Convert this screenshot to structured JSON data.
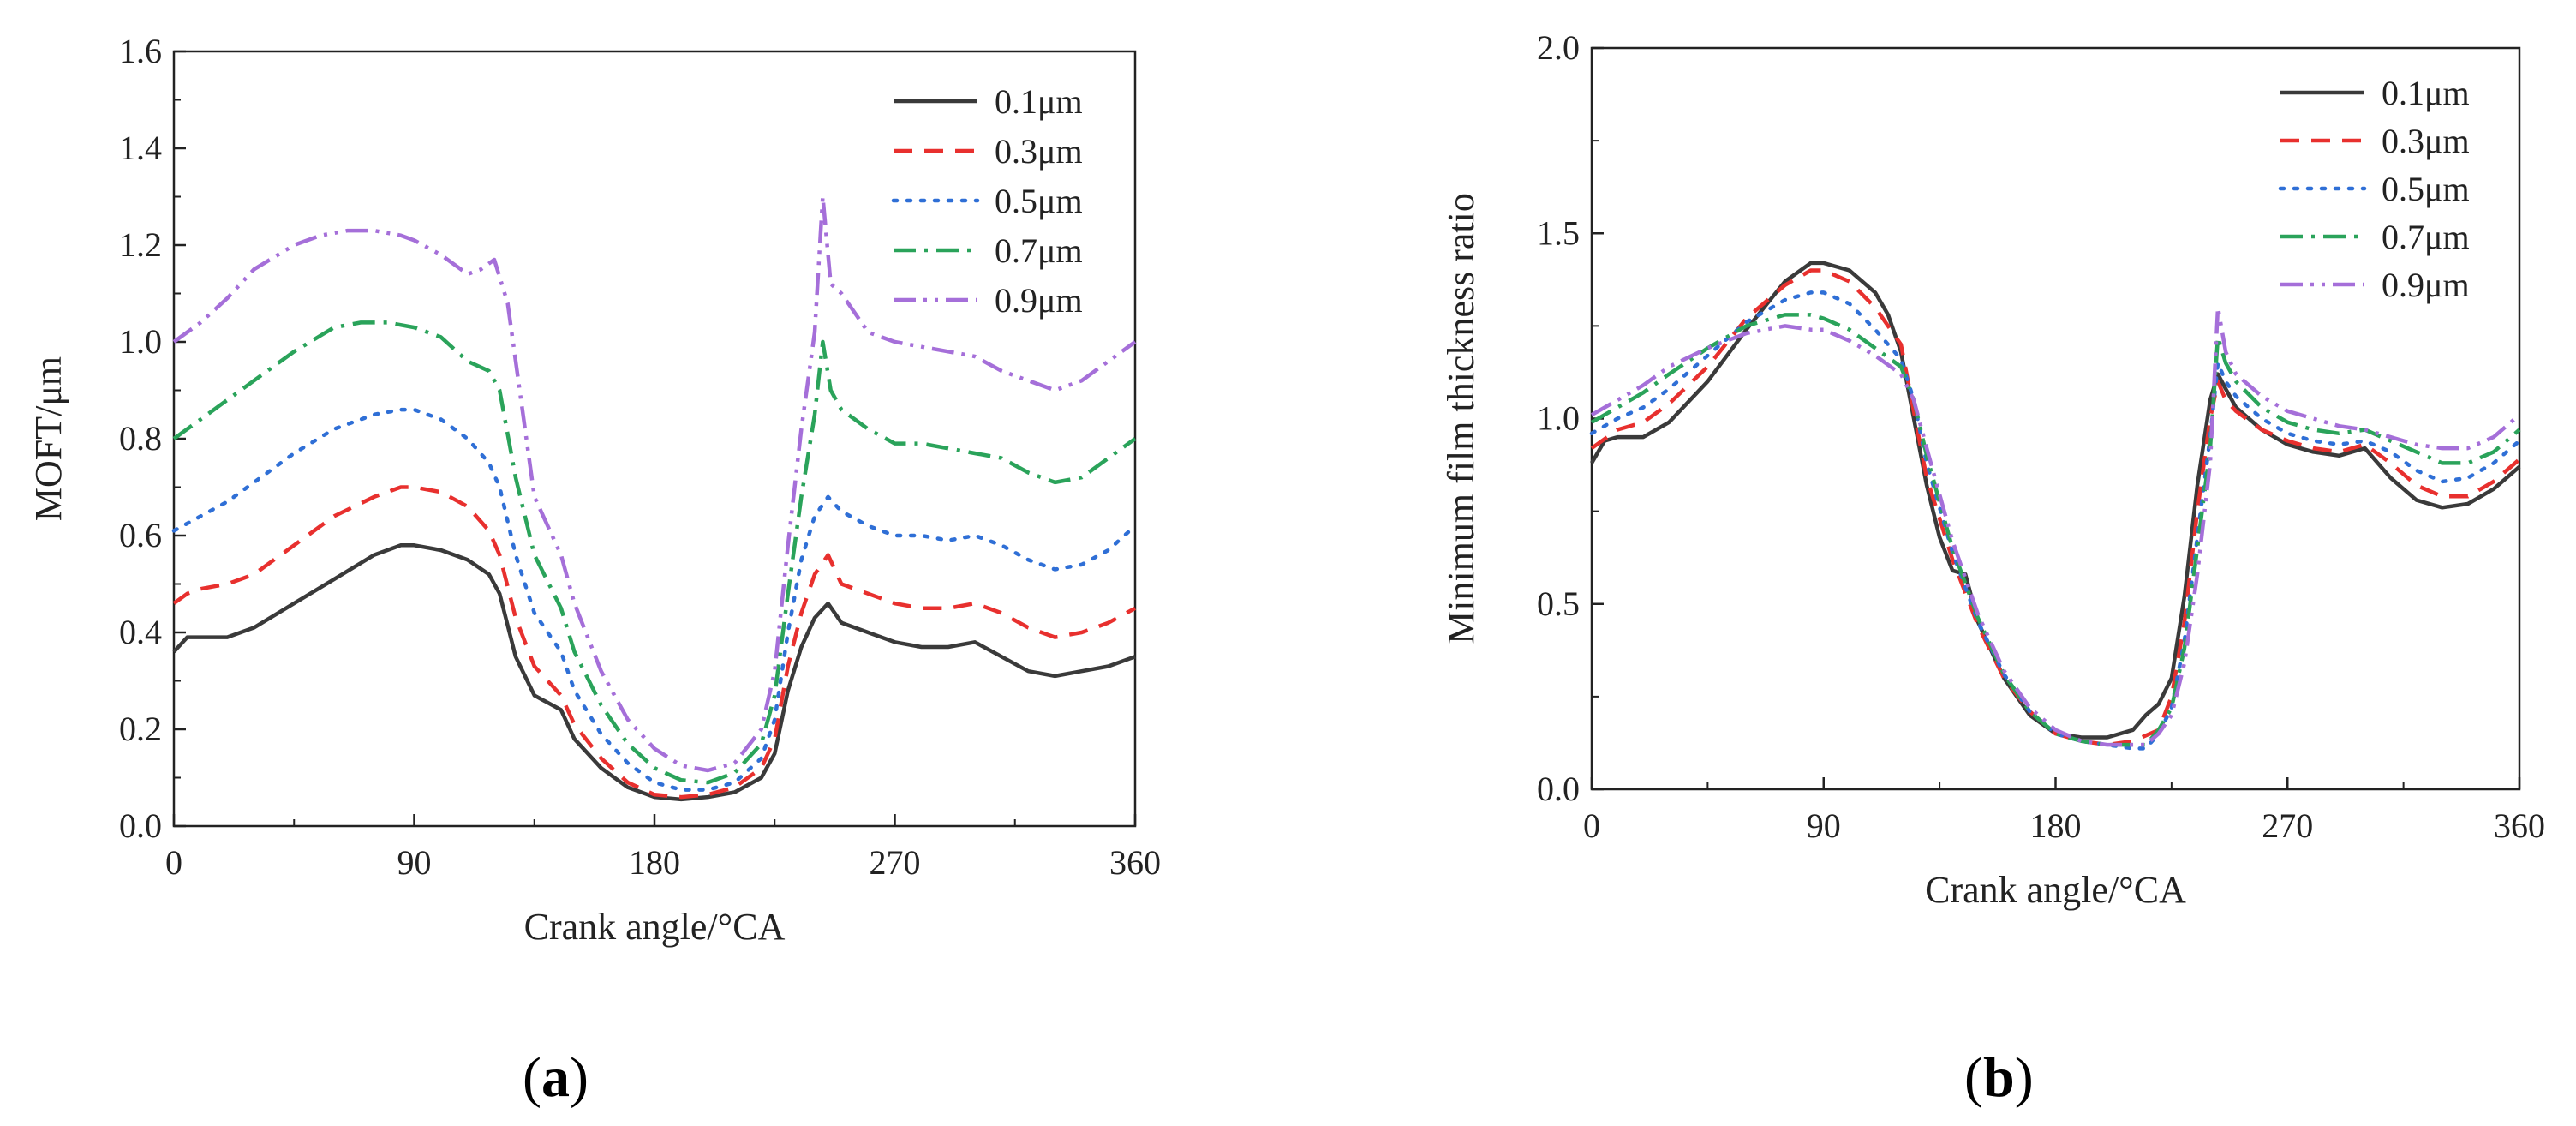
{
  "colors": {
    "0.1": "#3a3a3a",
    "0.3": "#e8302e",
    "0.5": "#2f6fd6",
    "0.7": "#2aa35a",
    "0.9": "#a56fd9"
  },
  "captions": {
    "a_open": "(",
    "a_letter": "a",
    "a_close": ")",
    "b_open": "(",
    "b_letter": "b",
    "b_close": ")"
  },
  "chart_data": [
    {
      "type": "line",
      "panel": "a",
      "xlabel": "Crank angle/°CA",
      "ylabel": "MOFT/μm",
      "xlim": [
        0,
        360
      ],
      "ylim": [
        0,
        1.6
      ],
      "xticks": [
        0,
        90,
        180,
        270,
        360
      ],
      "yticks": [
        0.0,
        0.2,
        0.4,
        0.6,
        0.8,
        1.0,
        1.2,
        1.4,
        1.6
      ],
      "ytick_labels": [
        "0.0",
        "0.2",
        "0.4",
        "0.6",
        "0.8",
        "1.0",
        "1.2",
        "1.4",
        "1.6"
      ],
      "legend_position": "top-right",
      "series": [
        {
          "name": "0.1μm",
          "style": "solid",
          "x": [
            0,
            5,
            10,
            20,
            30,
            45,
            60,
            75,
            85,
            90,
            100,
            110,
            118,
            122,
            128,
            135,
            145,
            150,
            160,
            170,
            180,
            190,
            200,
            210,
            220,
            225,
            230,
            235,
            240,
            245,
            250,
            260,
            270,
            280,
            290,
            300,
            310,
            320,
            330,
            340,
            350,
            360
          ],
          "y": [
            0.36,
            0.39,
            0.39,
            0.39,
            0.41,
            0.46,
            0.51,
            0.56,
            0.58,
            0.58,
            0.57,
            0.55,
            0.52,
            0.48,
            0.35,
            0.27,
            0.24,
            0.18,
            0.12,
            0.08,
            0.06,
            0.055,
            0.06,
            0.07,
            0.1,
            0.15,
            0.28,
            0.37,
            0.43,
            0.46,
            0.42,
            0.4,
            0.38,
            0.37,
            0.37,
            0.38,
            0.35,
            0.32,
            0.31,
            0.32,
            0.33,
            0.35
          ]
        },
        {
          "name": "0.3μm",
          "style": "dashed",
          "x": [
            0,
            5,
            10,
            20,
            30,
            45,
            60,
            75,
            85,
            90,
            100,
            110,
            118,
            122,
            128,
            135,
            145,
            150,
            160,
            170,
            180,
            190,
            200,
            210,
            220,
            225,
            230,
            235,
            240,
            245,
            250,
            260,
            270,
            280,
            290,
            300,
            310,
            320,
            330,
            340,
            350,
            360
          ],
          "y": [
            0.46,
            0.48,
            0.49,
            0.5,
            0.52,
            0.58,
            0.64,
            0.68,
            0.7,
            0.7,
            0.69,
            0.66,
            0.61,
            0.56,
            0.43,
            0.33,
            0.27,
            0.21,
            0.14,
            0.09,
            0.065,
            0.06,
            0.065,
            0.08,
            0.12,
            0.18,
            0.33,
            0.44,
            0.52,
            0.56,
            0.5,
            0.48,
            0.46,
            0.45,
            0.45,
            0.46,
            0.44,
            0.41,
            0.39,
            0.4,
            0.42,
            0.45
          ]
        },
        {
          "name": "0.5μm",
          "style": "dotted",
          "x": [
            0,
            10,
            20,
            30,
            45,
            60,
            75,
            85,
            90,
            100,
            110,
            118,
            122,
            128,
            135,
            145,
            150,
            160,
            170,
            180,
            190,
            200,
            210,
            220,
            225,
            230,
            235,
            240,
            245,
            250,
            260,
            270,
            280,
            290,
            300,
            310,
            320,
            330,
            340,
            350,
            360
          ],
          "y": [
            0.61,
            0.64,
            0.67,
            0.71,
            0.77,
            0.82,
            0.85,
            0.86,
            0.86,
            0.84,
            0.8,
            0.75,
            0.7,
            0.56,
            0.44,
            0.36,
            0.28,
            0.19,
            0.13,
            0.09,
            0.075,
            0.075,
            0.09,
            0.14,
            0.22,
            0.4,
            0.55,
            0.64,
            0.68,
            0.65,
            0.62,
            0.6,
            0.6,
            0.59,
            0.6,
            0.58,
            0.55,
            0.53,
            0.54,
            0.57,
            0.62
          ]
        },
        {
          "name": "0.7μm",
          "style": "dashdot",
          "x": [
            0,
            10,
            20,
            30,
            45,
            60,
            70,
            80,
            90,
            100,
            110,
            118,
            122,
            128,
            135,
            145,
            150,
            160,
            170,
            180,
            190,
            200,
            210,
            220,
            225,
            230,
            235,
            240,
            243,
            246,
            250,
            260,
            270,
            280,
            290,
            300,
            310,
            320,
            330,
            340,
            350,
            360
          ],
          "y": [
            0.8,
            0.84,
            0.88,
            0.92,
            0.98,
            1.03,
            1.04,
            1.04,
            1.03,
            1.01,
            0.96,
            0.94,
            0.9,
            0.72,
            0.56,
            0.45,
            0.36,
            0.25,
            0.17,
            0.12,
            0.095,
            0.09,
            0.11,
            0.17,
            0.27,
            0.48,
            0.68,
            0.85,
            1.0,
            0.9,
            0.86,
            0.82,
            0.79,
            0.79,
            0.78,
            0.77,
            0.76,
            0.73,
            0.71,
            0.72,
            0.76,
            0.8
          ]
        },
        {
          "name": "0.9μm",
          "style": "dashdotdot",
          "x": [
            0,
            10,
            20,
            30,
            45,
            55,
            65,
            75,
            85,
            90,
            100,
            110,
            115,
            120,
            125,
            130,
            135,
            145,
            150,
            160,
            170,
            180,
            190,
            200,
            210,
            220,
            225,
            230,
            235,
            240,
            243,
            246,
            250,
            260,
            270,
            280,
            290,
            300,
            310,
            320,
            330,
            340,
            350,
            360
          ],
          "y": [
            1.0,
            1.04,
            1.09,
            1.15,
            1.2,
            1.22,
            1.23,
            1.23,
            1.22,
            1.21,
            1.18,
            1.14,
            1.15,
            1.17,
            1.08,
            0.88,
            0.68,
            0.56,
            0.46,
            0.32,
            0.22,
            0.16,
            0.125,
            0.115,
            0.13,
            0.2,
            0.32,
            0.58,
            0.82,
            1.02,
            1.3,
            1.12,
            1.1,
            1.02,
            1.0,
            0.99,
            0.98,
            0.97,
            0.94,
            0.92,
            0.9,
            0.92,
            0.96,
            1.0
          ]
        }
      ]
    },
    {
      "type": "line",
      "panel": "b",
      "xlabel": "Crank angle/°CA",
      "ylabel": "Minimum film thickness ratio",
      "xlim": [
        0,
        360
      ],
      "ylim": [
        0,
        2.0
      ],
      "xticks": [
        0,
        90,
        180,
        270,
        360
      ],
      "yticks": [
        0.0,
        0.5,
        1.0,
        1.5,
        2.0
      ],
      "ytick_labels": [
        "0.0",
        "0.5",
        "1.0",
        "1.5",
        "2.0"
      ],
      "legend_position": "top-right",
      "series": [
        {
          "name": "0.1μm",
          "style": "solid",
          "x": [
            0,
            5,
            10,
            20,
            30,
            45,
            60,
            75,
            85,
            90,
            100,
            110,
            115,
            120,
            125,
            130,
            135,
            140,
            145,
            150,
            160,
            170,
            180,
            190,
            200,
            210,
            215,
            220,
            225,
            230,
            235,
            240,
            243,
            246,
            250,
            260,
            270,
            280,
            290,
            300,
            310,
            320,
            330,
            340,
            350,
            360
          ],
          "y": [
            0.88,
            0.94,
            0.95,
            0.95,
            0.99,
            1.1,
            1.24,
            1.37,
            1.42,
            1.42,
            1.4,
            1.34,
            1.28,
            1.18,
            1.0,
            0.82,
            0.68,
            0.59,
            0.58,
            0.45,
            0.3,
            0.2,
            0.15,
            0.14,
            0.14,
            0.16,
            0.2,
            0.23,
            0.3,
            0.52,
            0.82,
            1.05,
            1.12,
            1.08,
            1.03,
            0.97,
            0.93,
            0.91,
            0.9,
            0.92,
            0.84,
            0.78,
            0.76,
            0.77,
            0.81,
            0.87
          ]
        },
        {
          "name": "0.3μm",
          "style": "dashed",
          "x": [
            0,
            10,
            20,
            30,
            45,
            60,
            75,
            85,
            90,
            100,
            110,
            120,
            125,
            130,
            140,
            150,
            160,
            170,
            180,
            190,
            200,
            210,
            220,
            225,
            230,
            235,
            240,
            243,
            246,
            250,
            260,
            270,
            280,
            290,
            300,
            310,
            320,
            330,
            340,
            350,
            360
          ],
          "y": [
            0.92,
            0.97,
            0.99,
            1.04,
            1.14,
            1.27,
            1.36,
            1.4,
            1.4,
            1.37,
            1.3,
            1.2,
            1.02,
            0.84,
            0.62,
            0.44,
            0.3,
            0.21,
            0.15,
            0.13,
            0.12,
            0.13,
            0.16,
            0.25,
            0.45,
            0.75,
            1.0,
            1.1,
            1.05,
            1.02,
            0.97,
            0.94,
            0.92,
            0.91,
            0.93,
            0.88,
            0.82,
            0.79,
            0.79,
            0.83,
            0.89
          ]
        },
        {
          "name": "0.5μm",
          "style": "dotted",
          "x": [
            0,
            10,
            20,
            30,
            45,
            60,
            75,
            85,
            90,
            100,
            110,
            120,
            125,
            130,
            140,
            150,
            160,
            170,
            180,
            190,
            200,
            210,
            215,
            220,
            225,
            230,
            235,
            240,
            243,
            246,
            250,
            260,
            270,
            280,
            290,
            300,
            310,
            320,
            330,
            340,
            350,
            360
          ],
          "y": [
            0.96,
            1.0,
            1.03,
            1.08,
            1.17,
            1.26,
            1.32,
            1.34,
            1.34,
            1.31,
            1.24,
            1.16,
            1.05,
            0.88,
            0.64,
            0.45,
            0.31,
            0.21,
            0.15,
            0.13,
            0.12,
            0.11,
            0.11,
            0.15,
            0.22,
            0.4,
            0.68,
            0.95,
            1.15,
            1.1,
            1.06,
            1.0,
            0.96,
            0.94,
            0.93,
            0.94,
            0.91,
            0.86,
            0.83,
            0.84,
            0.88,
            0.94
          ]
        },
        {
          "name": "0.7μm",
          "style": "dashdot",
          "x": [
            0,
            10,
            20,
            30,
            45,
            60,
            75,
            85,
            90,
            100,
            110,
            120,
            125,
            130,
            140,
            150,
            160,
            170,
            180,
            190,
            200,
            210,
            215,
            220,
            225,
            230,
            235,
            240,
            243,
            246,
            250,
            260,
            270,
            280,
            290,
            300,
            310,
            320,
            330,
            340,
            350,
            360
          ],
          "y": [
            0.99,
            1.03,
            1.07,
            1.12,
            1.19,
            1.25,
            1.28,
            1.28,
            1.27,
            1.24,
            1.19,
            1.14,
            1.05,
            0.9,
            0.65,
            0.46,
            0.31,
            0.21,
            0.15,
            0.13,
            0.12,
            0.12,
            0.12,
            0.16,
            0.22,
            0.38,
            0.65,
            0.92,
            1.22,
            1.15,
            1.1,
            1.03,
            0.99,
            0.97,
            0.96,
            0.97,
            0.94,
            0.91,
            0.88,
            0.88,
            0.91,
            0.97
          ]
        },
        {
          "name": "0.9μm",
          "style": "dashdotdot",
          "x": [
            0,
            10,
            20,
            30,
            45,
            60,
            75,
            85,
            90,
            100,
            110,
            120,
            125,
            130,
            140,
            150,
            160,
            170,
            180,
            190,
            200,
            210,
            215,
            220,
            225,
            230,
            235,
            240,
            243,
            246,
            250,
            260,
            270,
            280,
            290,
            300,
            310,
            320,
            330,
            340,
            350,
            360
          ],
          "y": [
            1.01,
            1.05,
            1.09,
            1.14,
            1.19,
            1.23,
            1.25,
            1.24,
            1.24,
            1.21,
            1.17,
            1.12,
            1.05,
            0.92,
            0.67,
            0.47,
            0.32,
            0.22,
            0.16,
            0.13,
            0.12,
            0.12,
            0.12,
            0.15,
            0.2,
            0.34,
            0.58,
            0.88,
            1.3,
            1.18,
            1.12,
            1.06,
            1.02,
            1.0,
            0.98,
            0.97,
            0.95,
            0.93,
            0.92,
            0.92,
            0.95,
            1.01
          ]
        }
      ]
    }
  ]
}
